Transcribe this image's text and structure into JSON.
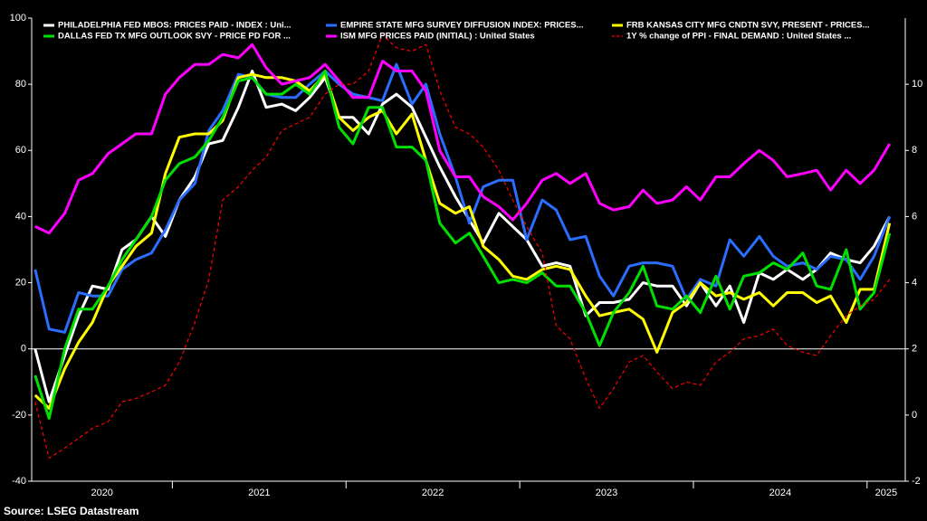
{
  "chart_data": {
    "type": "line",
    "source": "Source: LSEG Datastream",
    "x": [
      2020.21,
      2020.29,
      2020.38,
      2020.46,
      2020.54,
      2020.63,
      2020.71,
      2020.79,
      2020.88,
      2020.96,
      2021.04,
      2021.13,
      2021.21,
      2021.29,
      2021.38,
      2021.46,
      2021.54,
      2021.63,
      2021.71,
      2021.79,
      2021.88,
      2021.96,
      2022.04,
      2022.13,
      2022.21,
      2022.29,
      2022.38,
      2022.46,
      2022.54,
      2022.63,
      2022.71,
      2022.79,
      2022.88,
      2022.96,
      2023.04,
      2023.13,
      2023.21,
      2023.29,
      2023.38,
      2023.46,
      2023.54,
      2023.63,
      2023.71,
      2023.79,
      2023.88,
      2023.96,
      2024.04,
      2024.13,
      2024.21,
      2024.29,
      2024.38,
      2024.46,
      2024.54,
      2024.63,
      2024.71,
      2024.79,
      2024.88,
      2024.96,
      2025.04,
      2025.13
    ],
    "xlim": [
      2020.19,
      2025.22
    ],
    "xticks": [
      2020,
      2021,
      2022,
      2023,
      2024,
      2025
    ],
    "ylim": [
      -40,
      100
    ],
    "yticks": [
      -40,
      -20,
      0,
      20,
      40,
      60,
      80,
      100
    ],
    "y2lim": [
      -2,
      12
    ],
    "y2ticks": [
      -2,
      0,
      2,
      4,
      6,
      8,
      10
    ],
    "zero_line": true,
    "series": [
      {
        "name": "PHILADELPHIA FED MBOS: PRICES PAID - INDEX : Uni...",
        "color": "#ffffff",
        "style": "solid",
        "values": [
          0,
          -16,
          -2,
          10,
          19,
          18,
          30,
          33,
          40,
          34,
          45,
          52,
          62,
          63,
          73,
          84,
          73,
          74,
          72,
          76,
          82,
          70,
          70,
          65,
          74,
          77,
          73,
          64,
          55,
          46,
          39,
          32,
          41,
          37,
          33,
          25,
          26,
          25,
          10,
          14,
          14,
          15,
          20,
          19,
          19,
          13,
          20,
          13,
          19,
          8,
          23,
          21,
          24,
          21,
          24,
          29,
          27,
          26,
          31,
          40
        ]
      },
      {
        "name": "EMPIRE STATE MFG SURVEY DIFFUSION INDEX: PRICES...",
        "color": "#2a6dff",
        "style": "solid",
        "values": [
          24,
          6,
          5,
          17,
          16,
          16,
          24,
          27,
          29,
          36,
          45,
          50,
          66,
          72,
          83,
          82,
          77,
          76,
          76,
          80,
          84,
          80,
          77,
          76,
          75,
          86,
          74,
          80,
          65,
          52,
          38,
          49,
          51,
          51,
          33,
          45,
          42,
          33,
          34,
          22,
          16,
          25,
          26,
          26,
          25,
          15,
          21,
          19,
          33,
          28,
          34,
          28,
          25,
          26,
          24,
          28,
          27,
          21,
          28,
          40
        ]
      },
      {
        "name": "FRB KANSAS CITY MFG CNDTN SVY, PRESENT - PRICES...",
        "color": "#ffff00",
        "style": "solid",
        "values": [
          -14,
          -18,
          -6,
          2,
          8,
          19,
          25,
          31,
          35,
          53,
          64,
          65,
          65,
          69,
          82,
          83,
          82,
          82,
          81,
          78,
          83,
          70,
          66,
          70,
          72,
          65,
          71,
          57,
          44,
          41,
          43,
          31,
          27,
          22,
          21,
          24,
          25,
          24,
          16,
          10,
          11,
          12,
          9,
          -1,
          11,
          14,
          20,
          16,
          17,
          15,
          17,
          13,
          17,
          17,
          14,
          16,
          8,
          18,
          18,
          38
        ]
      },
      {
        "name": "DALLAS FED TX MFG OUTLOOK SVY - PRICE PD FOR ...",
        "color": "#00e000",
        "style": "solid",
        "values": [
          -8,
          -21,
          0,
          12,
          12,
          19,
          27,
          33,
          40,
          51,
          56,
          58,
          63,
          70,
          81,
          82,
          77,
          77,
          80,
          77,
          84,
          67,
          62,
          73,
          73,
          61,
          61,
          57,
          38,
          32,
          35,
          28,
          20,
          21,
          20,
          23,
          19,
          19,
          11,
          1,
          11,
          17,
          25,
          13,
          12,
          16,
          11,
          22,
          12,
          22,
          23,
          26,
          24,
          29,
          19,
          18,
          30,
          12,
          17,
          35
        ]
      },
      {
        "name": "ISM MFG PRICES PAID (INITIAL) : United States",
        "color": "#ff00ff",
        "style": "solid",
        "values": [
          37,
          35,
          41,
          51,
          53,
          59,
          62,
          65,
          65,
          77,
          82,
          86,
          86,
          89,
          88,
          92,
          85,
          80,
          81,
          82,
          86,
          81,
          76,
          76,
          87,
          84,
          84,
          78,
          60,
          52,
          52,
          46,
          43,
          39,
          44,
          51,
          53,
          50,
          53,
          44,
          42,
          43,
          48,
          44,
          45,
          49,
          45,
          52,
          52,
          56,
          60,
          57,
          52,
          53,
          54,
          48,
          54,
          50,
          54,
          62
        ]
      },
      {
        "name": "1Y % change of PPI - FINAL DEMAND : United States ...",
        "color": "#ff0000",
        "style": "dashed",
        "axis": "y2",
        "values": [
          0.4,
          -1.3,
          -1.0,
          -0.7,
          -0.4,
          -0.2,
          0.4,
          0.5,
          0.7,
          0.9,
          1.6,
          2.8,
          4.1,
          6.5,
          6.9,
          7.4,
          7.8,
          8.6,
          8.8,
          9.0,
          9.7,
          10.0,
          10.0,
          10.4,
          11.5,
          11.1,
          11.0,
          11.2,
          9.8,
          8.7,
          8.5,
          8.1,
          7.4,
          6.5,
          5.7,
          4.9,
          2.7,
          2.3,
          1.1,
          0.2,
          0.8,
          1.6,
          1.8,
          1.3,
          0.8,
          1.0,
          0.9,
          1.6,
          1.9,
          2.3,
          2.4,
          2.6,
          2.1,
          1.9,
          1.8,
          2.4,
          3.0,
          3.3,
          3.5,
          4.1
        ]
      }
    ]
  }
}
